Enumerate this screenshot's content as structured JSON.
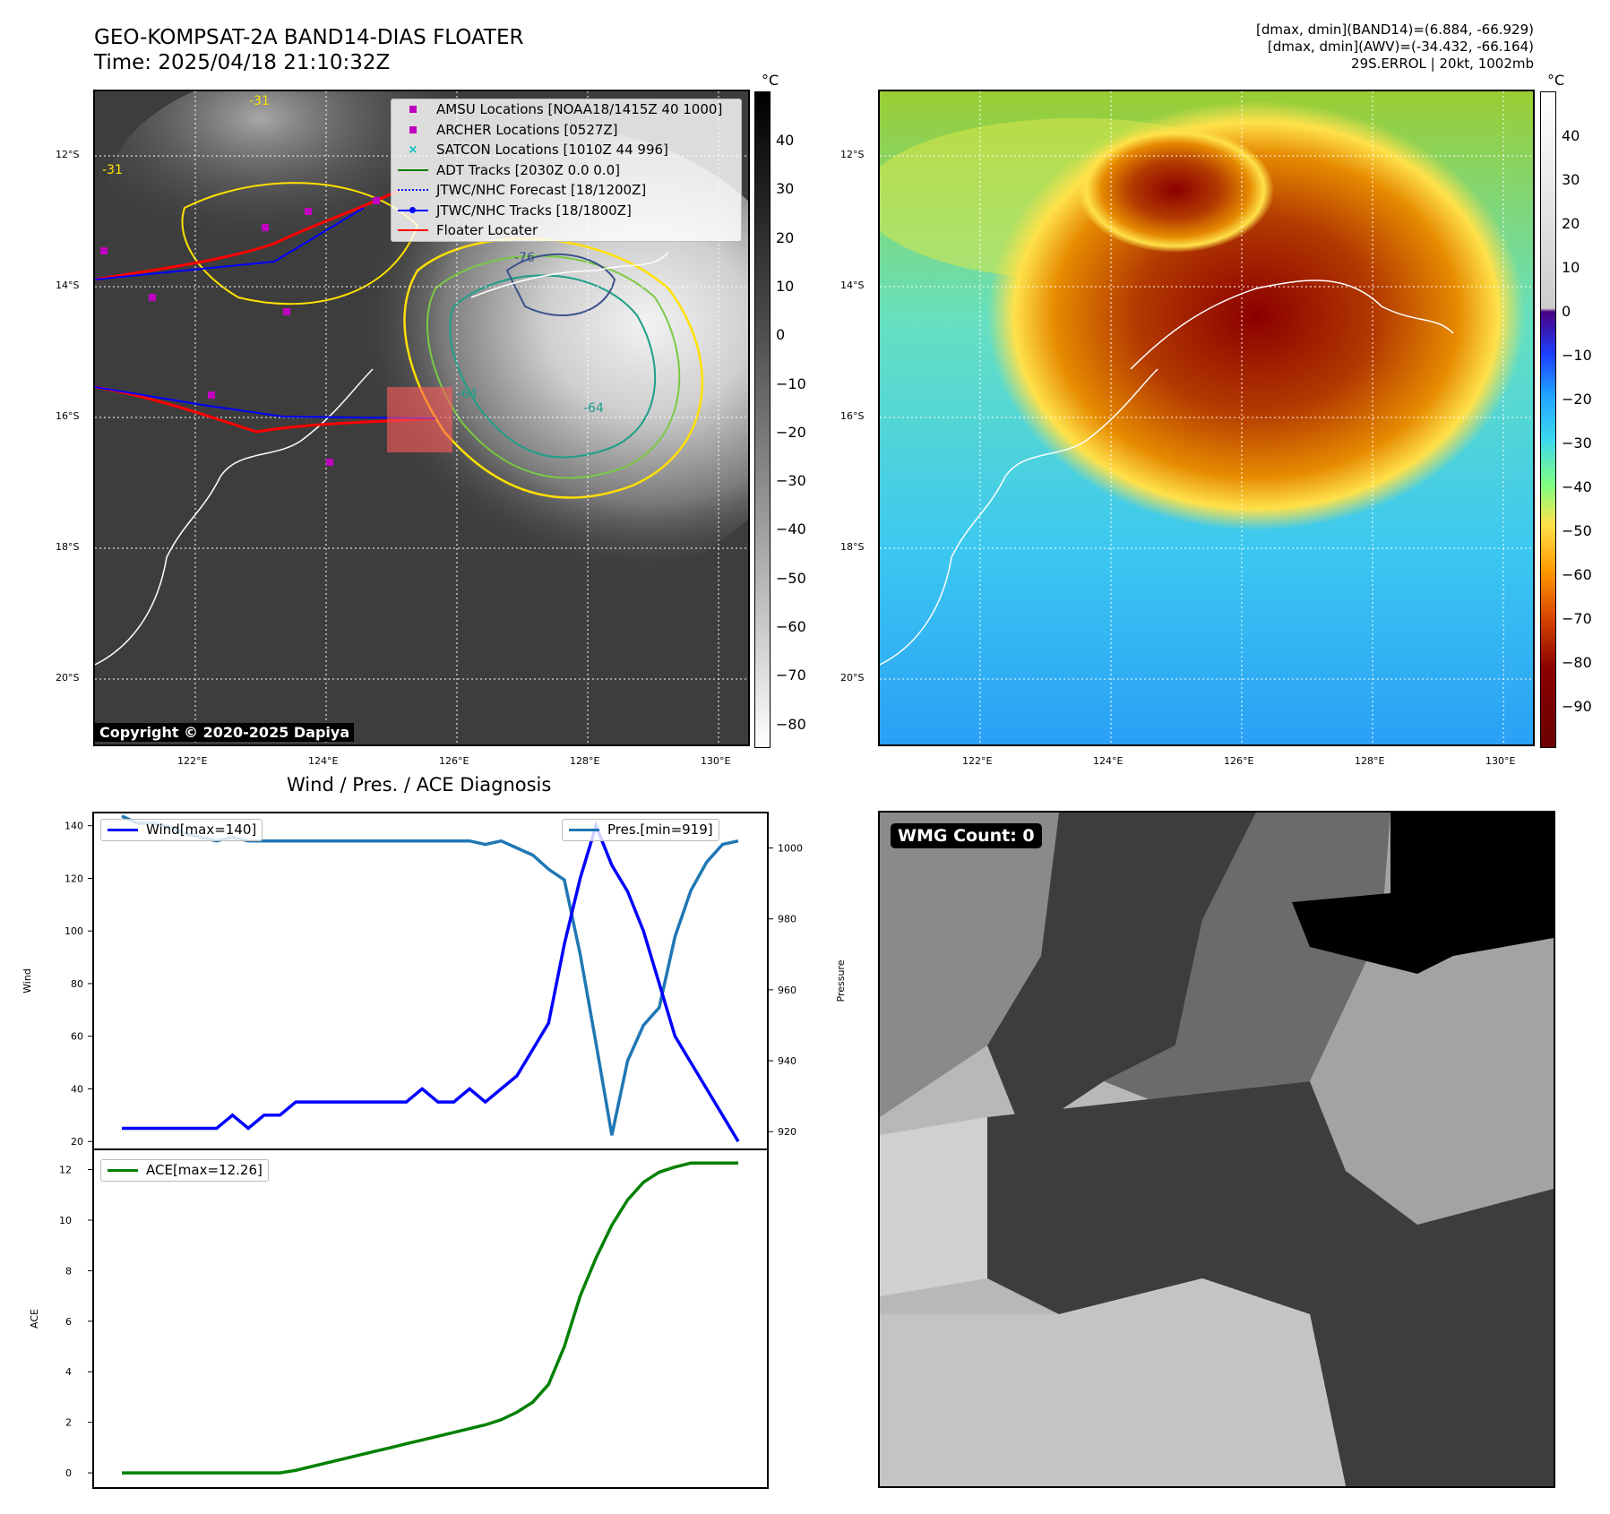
{
  "header": {
    "title_line1": "GEO-KOMPSAT-2A BAND14-DIAS FLOATER",
    "title_line2": "Time: 2025/04/18 21:10:32Z",
    "info_line1": "[dmax, dmin](BAND14)=(6.884, -66.929)",
    "info_line2": "[dmax, dmin](AWV)=(-34.432, -66.164)",
    "info_line3": "29S.ERROL | 20kt, 1002mb"
  },
  "map": {
    "lat_labels": [
      "12°S",
      "14°S",
      "16°S",
      "18°S",
      "20°S"
    ],
    "lon_labels": [
      "122°E",
      "124°E",
      "126°E",
      "128°E",
      "130°E"
    ],
    "contour_labels": [
      "-31",
      "-31",
      "-64",
      "-64",
      "-76"
    ],
    "copyright": "Copyright © 2020-2025 Dapiya",
    "legend": [
      {
        "label": "AMSU Locations [NOAA18/1415Z 40 1000]",
        "color": "#c000c0",
        "marker": "square"
      },
      {
        "label": "ARCHER Locations [0527Z]",
        "color": "#c000c0",
        "marker": "square"
      },
      {
        "label": "SATCON Locations [1010Z 44 996]",
        "color": "#00c0c0",
        "marker": "x"
      },
      {
        "label": "ADT Tracks [2030Z 0.0 0.0]",
        "color": "#008000",
        "marker": "line"
      },
      {
        "label": "JTWC/NHC Forecast [18/1200Z]",
        "color": "#0000ff",
        "marker": "dotted"
      },
      {
        "label": "JTWC/NHC Tracks [18/1800Z]",
        "color": "#0000ff",
        "marker": "line-dot"
      },
      {
        "label": "Floater Locater",
        "color": "#ff0000",
        "marker": "line"
      }
    ]
  },
  "colorbar_gray": {
    "unit": "°C",
    "ticks": [
      "40",
      "30",
      "20",
      "10",
      "0",
      "−10",
      "−20",
      "−30",
      "−40",
      "−50",
      "−60",
      "−70",
      "−80"
    ]
  },
  "colorbar_color": {
    "unit": "°C",
    "ticks": [
      "40",
      "30",
      "20",
      "10",
      "0",
      "−10",
      "−20",
      "−30",
      "−40",
      "−50",
      "−60",
      "−70",
      "−80",
      "−90"
    ]
  },
  "diagnosis": {
    "title": "Wind / Pres. / ACE Diagnosis"
  },
  "wmg": {
    "label": "WMG Count: 0"
  },
  "colors": {
    "wind": "#0000ff",
    "pressure": "#1f77b4",
    "ace": "#008000"
  },
  "chart_data": [
    {
      "type": "line",
      "title": "Wind / Pres. / ACE Diagnosis",
      "ylabel": "Wind",
      "y2label": "Pressure",
      "ylim": [
        17,
        145
      ],
      "y2lim": [
        915,
        1010
      ],
      "yticks": [
        20,
        40,
        60,
        80,
        100,
        120,
        140
      ],
      "y2ticks": [
        920,
        940,
        960,
        980,
        1000
      ],
      "series": [
        {
          "name": "Wind[max=140]",
          "axis": "left",
          "values": [
            25,
            25,
            25,
            25,
            25,
            25,
            25,
            30,
            25,
            30,
            30,
            35,
            35,
            35,
            35,
            35,
            35,
            35,
            35,
            40,
            35,
            35,
            40,
            35,
            40,
            45,
            55,
            65,
            95,
            120,
            140,
            125,
            115,
            100,
            80,
            60,
            50,
            40,
            30,
            20
          ]
        },
        {
          "name": "Pres.[min=919]",
          "axis": "right",
          "values": [
            1009,
            1007,
            1007,
            1006,
            1004,
            1003,
            1002,
            1003,
            1002,
            1002,
            1002,
            1002,
            1002,
            1002,
            1002,
            1002,
            1002,
            1002,
            1002,
            1002,
            1002,
            1002,
            1002,
            1001,
            1002,
            1000,
            998,
            994,
            991,
            970,
            945,
            919,
            940,
            950,
            955,
            975,
            988,
            996,
            1001,
            1002
          ]
        }
      ]
    },
    {
      "type": "line",
      "ylabel": "ACE",
      "ylim": [
        -0.6,
        12.8
      ],
      "yticks": [
        0,
        2,
        4,
        6,
        8,
        10,
        12
      ],
      "series": [
        {
          "name": "ACE[max=12.26]",
          "values": [
            0,
            0,
            0,
            0,
            0,
            0,
            0,
            0,
            0,
            0,
            0,
            0.1,
            0.25,
            0.4,
            0.55,
            0.7,
            0.85,
            1.0,
            1.15,
            1.3,
            1.45,
            1.6,
            1.75,
            1.9,
            2.1,
            2.4,
            2.8,
            3.5,
            5.0,
            7.0,
            8.5,
            9.8,
            10.8,
            11.5,
            11.9,
            12.1,
            12.26,
            12.26,
            12.26,
            12.26
          ]
        }
      ]
    }
  ]
}
